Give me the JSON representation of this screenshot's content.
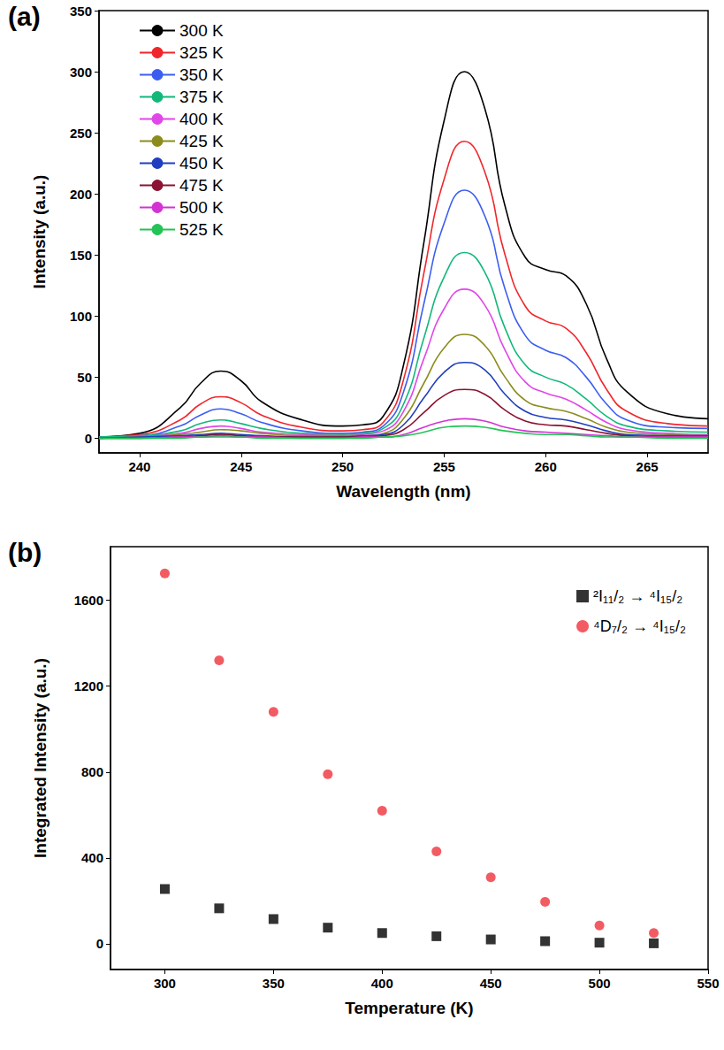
{
  "chart_data": [
    {
      "type": "line",
      "title": "(a)",
      "x_label": "Wavelength (nm)",
      "y_label": "Intensity (a.u.)",
      "x": [
        238,
        240,
        242,
        243,
        244,
        245,
        246,
        248,
        250,
        251,
        252,
        253,
        254,
        255,
        256,
        257,
        258,
        259,
        260,
        261,
        262,
        263,
        264,
        266,
        268
      ],
      "xlim": [
        238,
        268
      ],
      "xticks": [
        240,
        245,
        250,
        255,
        260,
        265
      ],
      "ylim": [
        -12,
        350
      ],
      "yticks": [
        0,
        50,
        100,
        150,
        200,
        250,
        300,
        350
      ],
      "legend": "upper left",
      "grid": false,
      "series": [
        {
          "name": "300 K",
          "color": "#000000",
          "values": [
            1,
            4,
            25,
            45,
            55,
            47,
            30,
            15,
            10,
            11,
            18,
            60,
            160,
            260,
            300,
            270,
            190,
            148,
            138,
            133,
            110,
            65,
            38,
            20,
            16
          ]
        },
        {
          "name": "325 K",
          "color": "#f0262b",
          "values": [
            1,
            3,
            15,
            28,
            34,
            29,
            19,
            9,
            6,
            7,
            13,
            48,
            135,
            212,
            243,
            218,
            150,
            108,
            96,
            90,
            70,
            40,
            22,
            12,
            10
          ]
        },
        {
          "name": "350 K",
          "color": "#3c5ef0",
          "values": [
            1,
            2,
            10,
            19,
            24,
            20,
            13,
            6,
            4,
            5,
            10,
            38,
            110,
            176,
            203,
            182,
            122,
            84,
            72,
            66,
            50,
            28,
            15,
            9,
            8
          ]
        },
        {
          "name": "375 K",
          "color": "#12b87a",
          "values": [
            1,
            2,
            6,
            12,
            15,
            12,
            8,
            4,
            3,
            4,
            8,
            28,
            82,
            132,
            152,
            136,
            90,
            60,
            50,
            44,
            32,
            18,
            10,
            6,
            5
          ]
        },
        {
          "name": "400 K",
          "color": "#e046e8",
          "values": [
            0,
            1,
            4,
            8,
            10,
            8,
            5,
            3,
            2,
            3,
            6,
            22,
            65,
            106,
            122,
            109,
            72,
            46,
            37,
            32,
            23,
            13,
            7,
            4,
            3
          ]
        },
        {
          "name": "425 K",
          "color": "#8c8c1e",
          "values": [
            0,
            1,
            3,
            5,
            7,
            6,
            4,
            2,
            2,
            2,
            4,
            16,
            45,
            74,
            85,
            76,
            50,
            31,
            25,
            22,
            16,
            9,
            5,
            3,
            2
          ]
        },
        {
          "name": "450 K",
          "color": "#1f3fbf",
          "values": [
            0,
            1,
            2,
            3,
            4,
            3,
            2,
            1,
            1,
            2,
            3,
            11,
            33,
            54,
            62,
            56,
            36,
            22,
            17,
            15,
            11,
            6,
            3,
            2,
            2
          ]
        },
        {
          "name": "475 K",
          "color": "#8b1232",
          "values": [
            0,
            0,
            1,
            2,
            3,
            2,
            1,
            1,
            1,
            1,
            2,
            7,
            21,
            35,
            40,
            36,
            23,
            14,
            11,
            10,
            7,
            4,
            2,
            1,
            1
          ]
        },
        {
          "name": "500 K",
          "color": "#d433d4",
          "values": [
            0,
            0,
            1,
            1,
            2,
            1,
            1,
            0,
            0,
            1,
            1,
            3,
            9,
            14,
            16,
            14,
            9,
            6,
            5,
            4,
            3,
            2,
            1,
            1,
            1
          ]
        },
        {
          "name": "525 K",
          "color": "#22c455",
          "values": [
            0,
            0,
            0,
            1,
            1,
            1,
            0,
            0,
            0,
            0,
            1,
            2,
            5,
            9,
            10,
            9,
            6,
            4,
            3,
            3,
            2,
            1,
            1,
            0,
            0
          ]
        }
      ]
    },
    {
      "type": "scatter",
      "title": "(b)",
      "x_label": "Temperature (K)",
      "y_label": "Integrated Intensity (a.u.)",
      "x": [
        300,
        325,
        350,
        375,
        400,
        425,
        450,
        475,
        500,
        525
      ],
      "xlim": [
        275,
        550
      ],
      "xticks": [
        300,
        350,
        400,
        450,
        500,
        550
      ],
      "ylim": [
        -120,
        1850
      ],
      "yticks": [
        0,
        400,
        800,
        1200,
        1600
      ],
      "legend": "upper right",
      "grid": false,
      "series": [
        {
          "name": "²I₁₁/₂ → ⁴I₁₅/₂",
          "color": "#000000",
          "marker": "square",
          "values": [
            255,
            165,
            115,
            75,
            50,
            35,
            20,
            12,
            5,
            2
          ]
        },
        {
          "name": "⁴D₇/₂ → ⁴I₁₅/₂",
          "color": "#f0323c",
          "marker": "circle",
          "values": [
            1725,
            1320,
            1080,
            790,
            620,
            430,
            310,
            195,
            85,
            50
          ]
        }
      ]
    }
  ]
}
